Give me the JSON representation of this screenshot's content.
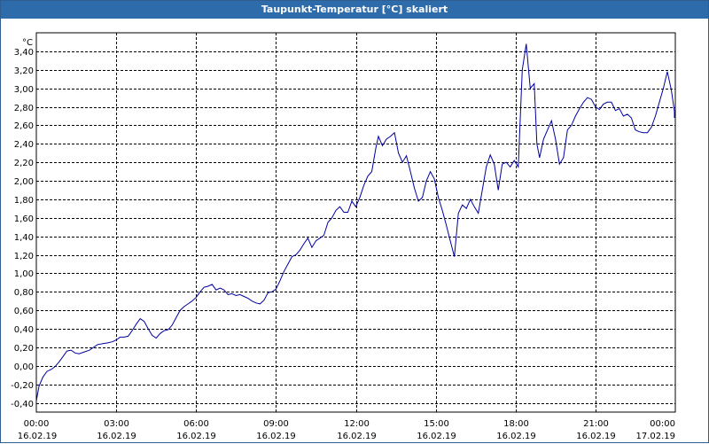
{
  "window": {
    "title": "Taupunkt-Temperatur [°C] skaliert"
  },
  "chart_data": {
    "type": "line",
    "title": "Taupunkt-Temperatur [°C] skaliert",
    "ylabel": "°C",
    "xlabel": "",
    "ylim": [
      -0.5,
      3.6
    ],
    "xlim": [
      0,
      24
    ],
    "grid": true,
    "line_color": "#0000a0",
    "grid_color": "#000000",
    "y_ticks": [
      {
        "value": -0.4,
        "label": "-0,40"
      },
      {
        "value": -0.2,
        "label": "-0,20"
      },
      {
        "value": 0.0,
        "label": "0,00"
      },
      {
        "value": 0.2,
        "label": "0,20"
      },
      {
        "value": 0.4,
        "label": "0,40"
      },
      {
        "value": 0.6,
        "label": "0,60"
      },
      {
        "value": 0.8,
        "label": "0,80"
      },
      {
        "value": 1.0,
        "label": "1,00"
      },
      {
        "value": 1.2,
        "label": "1,20"
      },
      {
        "value": 1.4,
        "label": "1,40"
      },
      {
        "value": 1.6,
        "label": "1,60"
      },
      {
        "value": 1.8,
        "label": "1,80"
      },
      {
        "value": 2.0,
        "label": "2,00"
      },
      {
        "value": 2.2,
        "label": "2,20"
      },
      {
        "value": 2.4,
        "label": "2,40"
      },
      {
        "value": 2.6,
        "label": "2,60"
      },
      {
        "value": 2.8,
        "label": "2,80"
      },
      {
        "value": 3.0,
        "label": "3,00"
      },
      {
        "value": 3.2,
        "label": "3,20"
      },
      {
        "value": 3.4,
        "label": "3,40"
      }
    ],
    "x_ticks": [
      {
        "value": 0,
        "time": "00:00",
        "date": "16.02.19"
      },
      {
        "value": 3,
        "time": "03:00",
        "date": "16.02.19"
      },
      {
        "value": 6,
        "time": "06:00",
        "date": "16.02.19"
      },
      {
        "value": 9,
        "time": "09:00",
        "date": "16.02.19"
      },
      {
        "value": 12,
        "time": "12:00",
        "date": "16.02.19"
      },
      {
        "value": 15,
        "time": "15:00",
        "date": "16.02.19"
      },
      {
        "value": 18,
        "time": "18:00",
        "date": "16.02.19"
      },
      {
        "value": 21,
        "time": "21:00",
        "date": "16.02.19"
      },
      {
        "value": 24,
        "time": "00:00",
        "date": "17.02.19"
      }
    ],
    "series": [
      {
        "points": [
          [
            0.0,
            -0.38
          ],
          [
            0.1,
            -0.22
          ],
          [
            0.25,
            -0.12
          ],
          [
            0.4,
            -0.06
          ],
          [
            0.55,
            -0.04
          ],
          [
            0.7,
            -0.01
          ],
          [
            0.85,
            0.04
          ],
          [
            1.0,
            0.1
          ],
          [
            1.15,
            0.16
          ],
          [
            1.3,
            0.17
          ],
          [
            1.45,
            0.14
          ],
          [
            1.6,
            0.13
          ],
          [
            1.8,
            0.15
          ],
          [
            2.0,
            0.17
          ],
          [
            2.15,
            0.2
          ],
          [
            2.3,
            0.23
          ],
          [
            2.5,
            0.24
          ],
          [
            2.7,
            0.25
          ],
          [
            2.85,
            0.26
          ],
          [
            3.0,
            0.28
          ],
          [
            3.15,
            0.31
          ],
          [
            3.3,
            0.31
          ],
          [
            3.45,
            0.32
          ],
          [
            3.6,
            0.38
          ],
          [
            3.75,
            0.45
          ],
          [
            3.9,
            0.51
          ],
          [
            4.05,
            0.48
          ],
          [
            4.2,
            0.4
          ],
          [
            4.35,
            0.33
          ],
          [
            4.5,
            0.3
          ],
          [
            4.65,
            0.35
          ],
          [
            4.8,
            0.38
          ],
          [
            4.95,
            0.39
          ],
          [
            5.1,
            0.44
          ],
          [
            5.25,
            0.52
          ],
          [
            5.4,
            0.6
          ],
          [
            5.55,
            0.64
          ],
          [
            5.7,
            0.67
          ],
          [
            5.85,
            0.7
          ],
          [
            6.0,
            0.74
          ],
          [
            6.15,
            0.8
          ],
          [
            6.3,
            0.85
          ],
          [
            6.45,
            0.86
          ],
          [
            6.6,
            0.88
          ],
          [
            6.75,
            0.82
          ],
          [
            6.9,
            0.84
          ],
          [
            7.05,
            0.82
          ],
          [
            7.2,
            0.77
          ],
          [
            7.35,
            0.78
          ],
          [
            7.5,
            0.76
          ],
          [
            7.65,
            0.77
          ],
          [
            7.8,
            0.75
          ],
          [
            7.95,
            0.73
          ],
          [
            8.1,
            0.7
          ],
          [
            8.25,
            0.68
          ],
          [
            8.4,
            0.67
          ],
          [
            8.55,
            0.71
          ],
          [
            8.7,
            0.79
          ],
          [
            8.85,
            0.8
          ],
          [
            9.0,
            0.83
          ],
          [
            9.15,
            0.92
          ],
          [
            9.3,
            1.02
          ],
          [
            9.45,
            1.1
          ],
          [
            9.6,
            1.18
          ],
          [
            9.75,
            1.2
          ],
          [
            9.9,
            1.25
          ],
          [
            10.05,
            1.32
          ],
          [
            10.2,
            1.38
          ],
          [
            10.35,
            1.28
          ],
          [
            10.5,
            1.35
          ],
          [
            10.65,
            1.38
          ],
          [
            10.8,
            1.41
          ],
          [
            10.95,
            1.55
          ],
          [
            11.1,
            1.6
          ],
          [
            11.25,
            1.68
          ],
          [
            11.4,
            1.72
          ],
          [
            11.55,
            1.66
          ],
          [
            11.7,
            1.66
          ],
          [
            11.85,
            1.78
          ],
          [
            12.0,
            1.72
          ],
          [
            12.15,
            1.82
          ],
          [
            12.3,
            1.95
          ],
          [
            12.45,
            2.05
          ],
          [
            12.6,
            2.1
          ],
          [
            12.75,
            2.35
          ],
          [
            12.85,
            2.48
          ],
          [
            13.0,
            2.38
          ],
          [
            13.15,
            2.45
          ],
          [
            13.3,
            2.48
          ],
          [
            13.45,
            2.52
          ],
          [
            13.6,
            2.3
          ],
          [
            13.75,
            2.2
          ],
          [
            13.9,
            2.27
          ],
          [
            14.05,
            2.1
          ],
          [
            14.2,
            1.92
          ],
          [
            14.35,
            1.78
          ],
          [
            14.5,
            1.82
          ],
          [
            14.65,
            2.0
          ],
          [
            14.8,
            2.1
          ],
          [
            14.95,
            2.02
          ],
          [
            15.1,
            1.82
          ],
          [
            15.25,
            1.68
          ],
          [
            15.4,
            1.52
          ],
          [
            15.55,
            1.35
          ],
          [
            15.7,
            1.18
          ],
          [
            15.85,
            1.65
          ],
          [
            16.0,
            1.74
          ],
          [
            16.15,
            1.7
          ],
          [
            16.3,
            1.8
          ],
          [
            16.45,
            1.72
          ],
          [
            16.6,
            1.65
          ],
          [
            16.75,
            1.9
          ],
          [
            16.9,
            2.15
          ],
          [
            17.05,
            2.28
          ],
          [
            17.2,
            2.18
          ],
          [
            17.35,
            1.9
          ],
          [
            17.5,
            2.18
          ],
          [
            17.65,
            2.2
          ],
          [
            17.8,
            2.15
          ],
          [
            17.95,
            2.22
          ],
          [
            18.1,
            2.15
          ],
          [
            18.25,
            3.2
          ],
          [
            18.4,
            3.48
          ],
          [
            18.55,
            3.0
          ],
          [
            18.7,
            3.05
          ],
          [
            18.8,
            2.4
          ],
          [
            18.9,
            2.25
          ],
          [
            19.05,
            2.45
          ],
          [
            19.2,
            2.55
          ],
          [
            19.35,
            2.65
          ],
          [
            19.5,
            2.45
          ],
          [
            19.65,
            2.18
          ],
          [
            19.8,
            2.25
          ],
          [
            19.95,
            2.55
          ],
          [
            20.1,
            2.6
          ],
          [
            20.25,
            2.7
          ],
          [
            20.4,
            2.78
          ],
          [
            20.55,
            2.85
          ],
          [
            20.7,
            2.9
          ],
          [
            20.85,
            2.88
          ],
          [
            21.0,
            2.8
          ],
          [
            21.15,
            2.77
          ],
          [
            21.3,
            2.83
          ],
          [
            21.45,
            2.85
          ],
          [
            21.6,
            2.85
          ],
          [
            21.75,
            2.76
          ],
          [
            21.9,
            2.78
          ],
          [
            22.05,
            2.7
          ],
          [
            22.2,
            2.72
          ],
          [
            22.35,
            2.68
          ],
          [
            22.5,
            2.55
          ],
          [
            22.65,
            2.53
          ],
          [
            22.8,
            2.52
          ],
          [
            22.95,
            2.52
          ],
          [
            23.1,
            2.58
          ],
          [
            23.25,
            2.7
          ],
          [
            23.4,
            2.85
          ],
          [
            23.55,
            3.0
          ],
          [
            23.7,
            3.18
          ],
          [
            23.85,
            2.98
          ],
          [
            24.0,
            2.75
          ],
          [
            24.15,
            2.72
          ],
          [
            24.3,
            2.68
          ]
        ]
      }
    ]
  }
}
